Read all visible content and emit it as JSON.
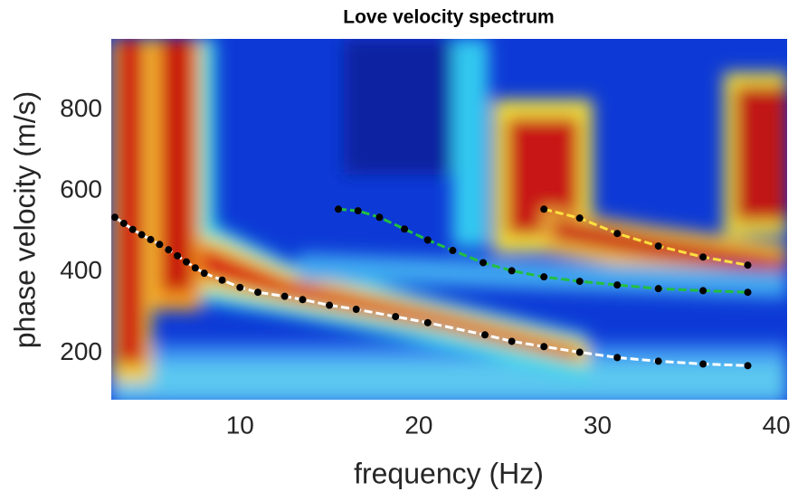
{
  "chart_data": {
    "type": "scatter",
    "title": "Love velocity spectrum",
    "x_label": "frequency (Hz)",
    "y_label": "phase velocity (m/s)",
    "xlim": [
      2.8,
      40.6
    ],
    "ylim": [
      85,
      975
    ],
    "xticks": [
      10,
      20,
      30,
      40
    ],
    "yticks": [
      200,
      400,
      600,
      800
    ],
    "grid": false,
    "point_color": "#000000",
    "series": [
      {
        "color": "#ffffff",
        "x": [
          3.0,
          3.5,
          4.0,
          4.5,
          5.0,
          5.5,
          6.0,
          6.5,
          7.0,
          7.5,
          8.0,
          9.0,
          10.0,
          11.0,
          12.5,
          13.5,
          15.0,
          16.5,
          18.7,
          20.5,
          23.7,
          25.2,
          27.0,
          29.0,
          31.1,
          33.4,
          35.9,
          38.4
        ],
        "values": [
          535,
          520,
          505,
          492,
          480,
          468,
          455,
          440,
          425,
          410,
          397,
          380,
          362,
          350,
          340,
          332,
          318,
          308,
          290,
          275,
          245,
          229,
          216,
          202,
          189,
          180,
          173,
          169
        ]
      },
      {
        "color": "#22c040",
        "x": [
          15.5,
          16.6,
          17.8,
          19.2,
          20.5,
          21.9,
          23.6,
          25.2,
          27.0,
          29.0,
          31.1,
          33.4,
          35.9,
          38.4
        ],
        "values": [
          555,
          551,
          535,
          506,
          479,
          453,
          423,
          403,
          388,
          377,
          368,
          359,
          354,
          350
        ]
      },
      {
        "color": "#ffe040",
        "x": [
          27.0,
          29.0,
          31.1,
          33.4,
          35.9,
          38.4
        ],
        "values": [
          555,
          533,
          495,
          464,
          437,
          417
        ]
      }
    ]
  }
}
